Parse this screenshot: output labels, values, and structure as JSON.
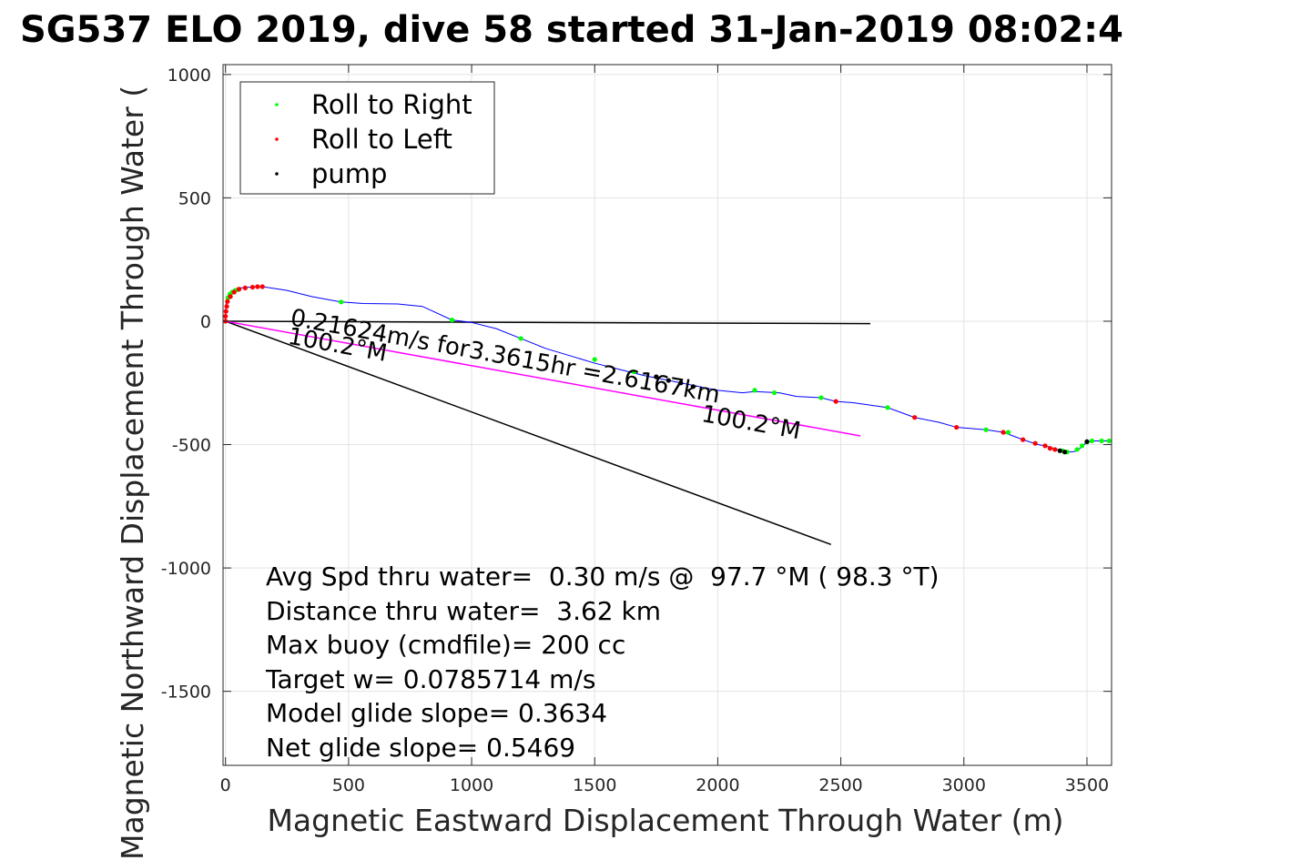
{
  "chart_data": {
    "type": "line",
    "title": "SG537 ELO 2019, dive 58 started 31-Jan-2019 08:02:4",
    "xlabel": "Magnetic Eastward Displacement Through Water (m)",
    "ylabel": "Magnetic Northward Displacement Through Water (",
    "xlim": [
      -10,
      3600
    ],
    "ylim": [
      -1800,
      1040
    ],
    "x_ticks": [
      0,
      500,
      1000,
      1500,
      2000,
      2500,
      3000,
      3500
    ],
    "y_ticks": [
      1000,
      500,
      0,
      -500,
      -1000,
      -1500
    ],
    "grid": true,
    "legend_position": "top-left",
    "legend": [
      {
        "label": "Roll to Right",
        "color": "#00ff00"
      },
      {
        "label": "Roll to Left",
        "color": "#ff0000"
      },
      {
        "label": "pump",
        "color": "#000000"
      }
    ],
    "track": {
      "color": "#0000ff",
      "x": [
        0,
        0,
        5,
        15,
        35,
        60,
        100,
        150,
        250,
        350,
        470,
        560,
        700,
        800,
        920,
        1000,
        1100,
        1200,
        1300,
        1400,
        1500,
        1600,
        1700,
        1800,
        1900,
        2000,
        2100,
        2150,
        2250,
        2320,
        2420,
        2480,
        2550,
        2690,
        2800,
        2900,
        2970,
        3090,
        3160,
        3240,
        3300,
        3330,
        3400,
        3440,
        3460,
        3500,
        3530,
        3590
      ],
      "y": [
        0,
        40,
        90,
        115,
        128,
        135,
        138,
        140,
        125,
        100,
        78,
        72,
        70,
        60,
        5,
        -5,
        -30,
        -70,
        -110,
        -140,
        -170,
        -195,
        -220,
        -240,
        -260,
        -280,
        -290,
        -285,
        -290,
        -305,
        -310,
        -325,
        -330,
        -350,
        -390,
        -410,
        -430,
        -440,
        -450,
        -480,
        -500,
        -505,
        -525,
        -530,
        -525,
        -490,
        -485,
        -485
      ]
    },
    "roll_right": {
      "x": [
        10,
        18,
        28,
        40,
        50,
        470,
        920,
        1200,
        1500,
        1660,
        2150,
        2230,
        2420,
        2690,
        3090,
        3180,
        3400,
        3420,
        3460,
        3480,
        3500,
        3520,
        3560,
        3590
      ],
      "y": [
        95,
        110,
        118,
        125,
        128,
        78,
        5,
        -70,
        -155,
        -205,
        -280,
        -290,
        -310,
        -350,
        -440,
        -450,
        -525,
        -530,
        -520,
        -505,
        -490,
        -485,
        -485,
        -485
      ]
    },
    "roll_left": {
      "x": [
        0,
        0,
        2,
        5,
        8,
        20,
        35,
        55,
        80,
        110,
        130,
        150,
        2480,
        2800,
        2970,
        3160,
        3240,
        3290,
        3330,
        3350,
        3370
      ],
      "y": [
        0,
        20,
        40,
        60,
        80,
        100,
        118,
        130,
        135,
        138,
        140,
        140,
        -325,
        -390,
        -430,
        -450,
        -480,
        -495,
        -505,
        -515,
        -520
      ]
    },
    "pump": {
      "x": [
        1750,
        1800,
        1850,
        1900,
        3390,
        3410,
        3500
      ],
      "y": [
        -225,
        -240,
        -250,
        -265,
        -525,
        -530,
        -488
      ]
    },
    "reference_lines": [
      {
        "name": "heading line (black)",
        "x": [
          0,
          2620
        ],
        "y": [
          0,
          -10
        ],
        "color": "#000000"
      },
      {
        "name": "current vector",
        "x": [
          0,
          2460
        ],
        "y": [
          0,
          -905
        ],
        "color": "#000000"
      },
      {
        "name": "net displacement",
        "x": [
          0,
          2580
        ],
        "y": [
          0,
          -465
        ],
        "color": "#ff00ff"
      }
    ],
    "annotations": [
      {
        "text": "0.21624m/s for3.3615hr =2.6167km",
        "x": 260,
        "y": -15,
        "rotation": 10.3
      },
      {
        "text": "100.2°M",
        "x": 250,
        "y": -90,
        "rotation": 10.3
      },
      {
        "text": "100.2°M",
        "x": 1930,
        "y": -405,
        "rotation": 10.3
      }
    ],
    "summary": [
      "Avg Spd thru water=  0.30 m/s @  97.7 °M ( 98.3 °T)",
      "Distance thru water=  3.62 km",
      "Max buoy (cmdfile)= 200 cc",
      "Target w= 0.0785714 m/s",
      "Model glide slope= 0.3634",
      "Net glide slope= 0.5469"
    ]
  }
}
